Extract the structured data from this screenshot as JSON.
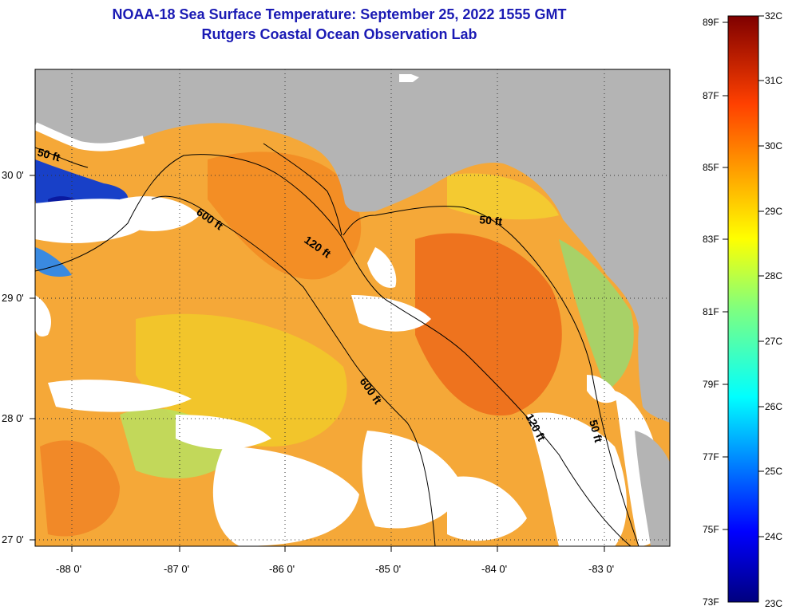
{
  "header": {
    "title": "NOAA-18 Sea Surface Temperature:  September 25, 2022 1555 GMT",
    "subtitle": "Rutgers Coastal Ocean Observation Lab"
  },
  "map": {
    "lat_labels": [
      "30 0'",
      "29 0'",
      "28 0'",
      "27 0'"
    ],
    "lon_labels": [
      "-88 0'",
      "-87 0'",
      "-86 0'",
      "-85 0'",
      "-84 0'",
      "-83 0'"
    ],
    "contour_labels": [
      "50 ft",
      "600 ft",
      "120 ft",
      "50 ft",
      "600 ft",
      "120 ft",
      "50 ft"
    ],
    "colors": {
      "land": "#b4b4b4",
      "cloud": "#ffffff",
      "warm": "#f59a2a",
      "cool": "#1840c8"
    }
  },
  "colorbar": {
    "f_labels": [
      "89F",
      "87F",
      "85F",
      "83F",
      "81F",
      "79F",
      "77F",
      "75F",
      "73F"
    ],
    "c_labels": [
      "32C",
      "31C",
      "30C",
      "29C",
      "28C",
      "27C",
      "26C",
      "25C",
      "24C",
      "23C"
    ],
    "range_c": [
      23,
      32
    ]
  }
}
